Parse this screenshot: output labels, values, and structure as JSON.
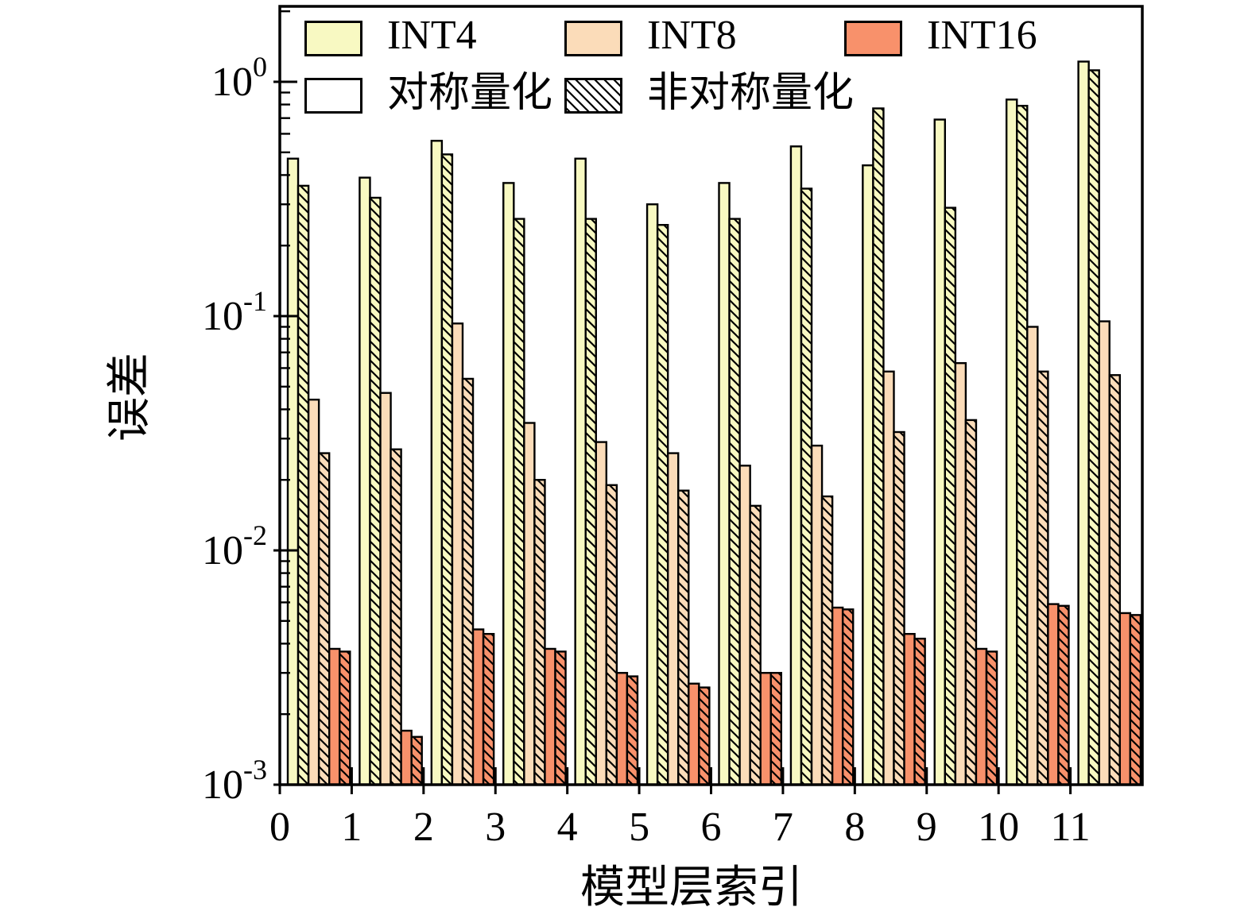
{
  "chart_data": {
    "type": "bar",
    "title": "",
    "xlabel": "模型层索引",
    "ylabel": "误差",
    "yscale": "log",
    "ylim": [
      0.001,
      2.1
    ],
    "y_major_tick_exponents": [
      0,
      -1,
      -2,
      -3
    ],
    "categories": [
      "0",
      "1",
      "2",
      "3",
      "4",
      "5",
      "6",
      "7",
      "8",
      "9",
      "10",
      "11"
    ],
    "grid": false,
    "legend_position": "upper-left",
    "edge_color": "#000000",
    "legend": {
      "bit_widths": [
        {
          "label": "INT4",
          "color": "#F8F9C2"
        },
        {
          "label": "INT8",
          "color": "#FBDCB9"
        },
        {
          "label": "INT16",
          "color": "#F8916B"
        }
      ],
      "quant_styles": [
        {
          "label": "对称量化",
          "hatched": false
        },
        {
          "label": "非对称量化",
          "hatched": true
        }
      ]
    },
    "series": [
      {
        "bits": "INT4",
        "quant": "对称量化",
        "hatched": false,
        "color": "#F8F9C2",
        "values": [
          0.47,
          0.39,
          0.56,
          0.37,
          0.47,
          0.3,
          0.37,
          0.53,
          0.44,
          0.69,
          0.84,
          1.22
        ]
      },
      {
        "bits": "INT4",
        "quant": "非对称量化",
        "hatched": true,
        "color": "#F8F9C2",
        "values": [
          0.36,
          0.32,
          0.49,
          0.26,
          0.26,
          0.245,
          0.26,
          0.35,
          0.77,
          0.29,
          0.79,
          1.12
        ]
      },
      {
        "bits": "INT8",
        "quant": "对称量化",
        "hatched": false,
        "color": "#FBDCB9",
        "values": [
          0.044,
          0.047,
          0.093,
          0.035,
          0.029,
          0.026,
          0.023,
          0.028,
          0.058,
          0.063,
          0.09,
          0.095
        ]
      },
      {
        "bits": "INT8",
        "quant": "非对称量化",
        "hatched": true,
        "color": "#FBDCB9",
        "values": [
          0.026,
          0.027,
          0.054,
          0.02,
          0.019,
          0.018,
          0.0155,
          0.017,
          0.032,
          0.036,
          0.058,
          0.056
        ]
      },
      {
        "bits": "INT16",
        "quant": "对称量化",
        "hatched": false,
        "color": "#F8916B",
        "values": [
          0.0038,
          0.0017,
          0.0046,
          0.0038,
          0.003,
          0.0027,
          0.003,
          0.0057,
          0.0044,
          0.0038,
          0.0059,
          0.0054
        ]
      },
      {
        "bits": "INT16",
        "quant": "非对称量化",
        "hatched": true,
        "color": "#F8916B",
        "values": [
          0.0037,
          0.0016,
          0.0044,
          0.0037,
          0.0029,
          0.0026,
          0.003,
          0.0056,
          0.0042,
          0.0037,
          0.0058,
          0.0053
        ]
      }
    ]
  }
}
